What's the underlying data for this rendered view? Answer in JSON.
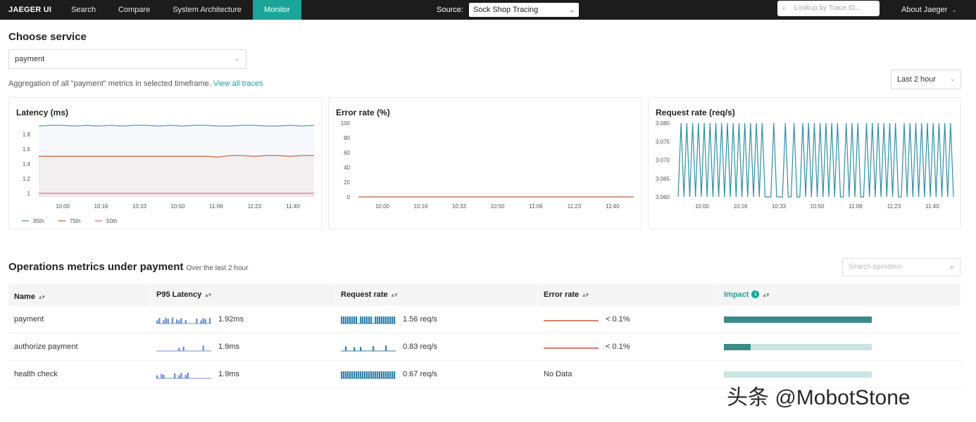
{
  "nav": {
    "brand": "JAEGER UI",
    "items": [
      "Search",
      "Compare",
      "System Architecture",
      "Monitor"
    ],
    "active": "Monitor",
    "source_label": "Source:",
    "source_value": "Sock Shop Tracing",
    "trace_lookup_placeholder": "Lookup by Trace ID...",
    "about": "About Jaeger"
  },
  "service": {
    "heading": "Choose service",
    "selected": "payment",
    "aggregation_text": "Aggregation of all \"payment\" metrics in selected timeframe.",
    "view_all_link": "View all traces",
    "timeframe": "Last 2 hour"
  },
  "charts": {
    "x_ticks": [
      "10:00",
      "10:16",
      "10:33",
      "10:50",
      "11:06",
      "11:23",
      "11:40"
    ],
    "latency": {
      "title": "Latency (ms)",
      "legend": [
        "95th",
        "75th",
        "50th"
      ]
    },
    "error": {
      "title": "Error rate (%)"
    },
    "request": {
      "title": "Request rate (req/s)"
    }
  },
  "chart_data": [
    {
      "type": "line",
      "title": "Latency (ms)",
      "ylim": [
        0.95,
        1.95
      ],
      "y_ticks": [
        "1.8",
        "1.6",
        "1.4",
        "1.2",
        "1"
      ],
      "x_ticks": [
        "10:00",
        "10:16",
        "10:33",
        "10:50",
        "11:06",
        "11:23",
        "11:40"
      ],
      "series": [
        {
          "name": "95th",
          "color": "#7b98cf",
          "values": [
            1.91,
            1.92,
            1.92,
            1.91,
            1.92,
            1.91,
            1.92,
            1.91,
            1.92,
            1.92,
            1.91,
            1.92,
            1.91,
            1.92,
            1.92,
            1.91,
            1.91,
            1.92,
            1.92,
            1.91,
            1.91,
            1.92,
            1.91,
            1.92
          ]
        },
        {
          "name": "75th",
          "color": "#c97a5e",
          "values": [
            1.5,
            1.5,
            1.5,
            1.5,
            1.5,
            1.5,
            1.5,
            1.5,
            1.5,
            1.5,
            1.5,
            1.5,
            1.5,
            1.5,
            1.5,
            1.49,
            1.51,
            1.51,
            1.5,
            1.51,
            1.51,
            1.5,
            1.51,
            1.51
          ]
        },
        {
          "name": "50th",
          "color": "#d48aa0",
          "values": [
            1.0,
            1.0,
            1.0,
            1.0,
            1.0,
            1.0,
            1.0,
            1.0,
            1.0,
            1.0,
            1.0,
            1.0,
            1.0,
            1.0,
            1.0,
            1.0,
            1.0,
            1.0,
            1.0,
            1.0,
            1.0,
            1.0,
            1.0,
            1.0
          ]
        }
      ]
    },
    {
      "type": "line",
      "title": "Error rate (%)",
      "ylim": [
        0,
        100
      ],
      "y_ticks": [
        "100",
        "80",
        "60",
        "40",
        "20",
        "0"
      ],
      "x_ticks": [
        "10:00",
        "10:16",
        "10:33",
        "10:50",
        "11:06",
        "11:23",
        "11:40"
      ],
      "series": [
        {
          "color": "#c97a5e",
          "values": [
            0,
            0,
            0,
            0,
            0,
            0,
            0,
            0,
            0,
            0,
            0,
            0
          ]
        }
      ]
    },
    {
      "type": "line",
      "title": "Request rate (req/s)",
      "ylim": [
        3.06,
        3.08
      ],
      "y_ticks": [
        "3.080",
        "3.075",
        "3.070",
        "3.065",
        "3.060"
      ],
      "x_ticks": [
        "10:00",
        "10:16",
        "10:33",
        "10:50",
        "11:06",
        "11:23",
        "11:40"
      ],
      "series": [
        {
          "color": "#2f8fa6",
          "values": [
            3.06,
            3.08,
            3.06,
            3.08,
            3.06,
            3.08,
            3.06,
            3.08,
            3.06,
            3.08,
            3.06,
            3.08,
            3.06,
            3.08,
            3.06,
            3.08,
            3.06,
            3.08,
            3.06,
            3.08,
            3.06,
            3.08,
            3.06,
            3.08,
            3.06,
            3.08,
            3.06,
            3.08,
            3.06,
            3.08,
            3.06,
            3.06,
            3.06,
            3.08,
            3.06,
            3.06,
            3.06,
            3.08,
            3.06,
            3.06,
            3.08,
            3.06,
            3.06,
            3.08,
            3.06,
            3.08,
            3.06,
            3.08,
            3.06,
            3.08,
            3.06,
            3.08,
            3.06,
            3.08,
            3.06,
            3.08,
            3.06,
            3.06,
            3.08,
            3.06,
            3.08,
            3.06,
            3.08,
            3.06,
            3.06,
            3.08,
            3.06,
            3.08,
            3.06,
            3.08,
            3.06,
            3.08,
            3.06,
            3.08,
            3.06,
            3.08,
            3.06,
            3.06,
            3.08,
            3.06,
            3.08,
            3.06,
            3.08,
            3.06,
            3.08,
            3.06,
            3.08,
            3.06,
            3.08,
            3.06,
            3.08,
            3.06,
            3.08,
            3.06,
            3.08,
            3.06
          ]
        }
      ]
    }
  ],
  "operations": {
    "heading": "Operations metrics under payment",
    "subheading": "Over the last 2 hour",
    "search_placeholder": "Search operation",
    "columns": [
      "Name",
      "P95 Latency",
      "Request rate",
      "Error rate",
      "Impact"
    ],
    "rows": [
      {
        "name": "payment",
        "latency": "1.92ms",
        "request_rate": "1.56 req/s",
        "error_rate": "< 0.1%",
        "impact": 1.0
      },
      {
        "name": "authorize payment",
        "latency": "1.9ms",
        "request_rate": "0.83 req/s",
        "error_rate": "< 0.1%",
        "impact": 0.18
      },
      {
        "name": "health check",
        "latency": "1.9ms",
        "request_rate": "0.67 req/s",
        "error_rate": "No Data",
        "impact": 0.0
      }
    ]
  },
  "watermark": "头条 @MobotStone",
  "colors": {
    "accent": "#1aa59a",
    "latency_spark": "#6f8fd0",
    "request_spark": "#2f7fa8",
    "error_line": "#d4826a",
    "impact_fill": "#3c8a88",
    "impact_track": "#c9e5e3"
  }
}
